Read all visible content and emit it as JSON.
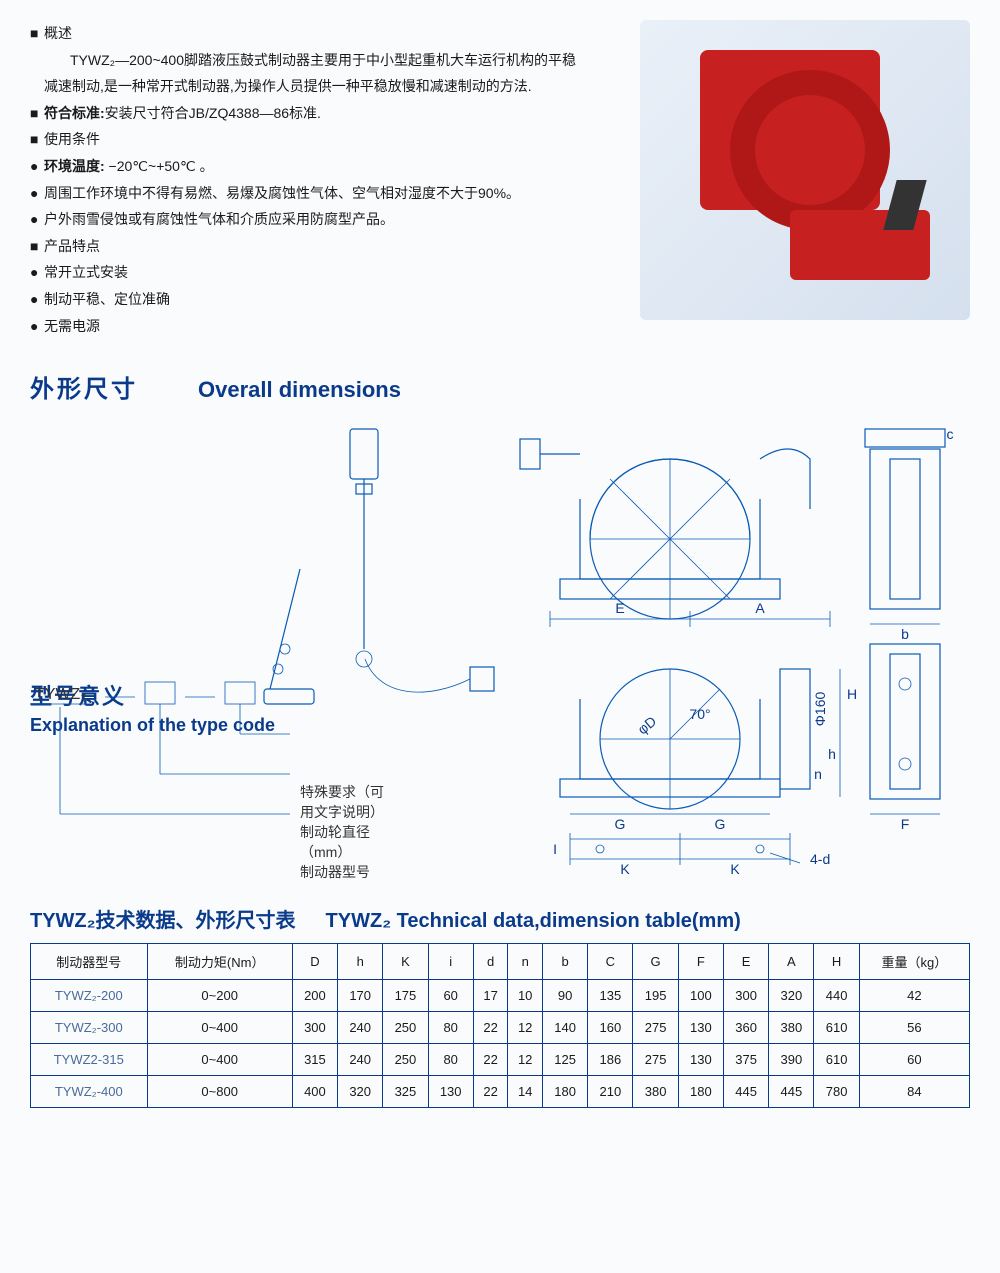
{
  "overview": {
    "header": "概述",
    "line1": "TYWZ₂—200~400脚踏液压鼓式制动器主要用于中小型起重机大车运行机构的平稳",
    "line2": "减速制动,是一种常开式制动器,为操作人员提供一种平稳放慢和减速制动的方法.",
    "std_label": "符合标准:",
    "std_text": "安装尺寸符合JB/ZQ4388—86标准.",
    "cond_label": "使用条件",
    "temp_label": "环境温度:",
    "temp_text": " −20℃~+50℃ 。",
    "cond1": "周围工作环境中不得有易燃、易爆及腐蚀性气体、空气相对湿度不大于90%。",
    "cond2": "户外雨雪侵蚀或有腐蚀性气体和介质应采用防腐型产品。",
    "feat_label": "产品特点",
    "feat1": "常开立式安装",
    "feat2": "制动平稳、定位准确",
    "feat3": "无需电源"
  },
  "dimensions_title": {
    "cn": "外形尺寸",
    "en": "Overall dimensions"
  },
  "typecode": {
    "title_cn": "型号意义",
    "title_en": "Explanation of the type code",
    "prefix": "TYWZ₂",
    "lbl1": "特殊要求（可用文字说明）",
    "lbl2": "制动轮直径（mm）",
    "lbl3": "制动器型号"
  },
  "diagram_labels": {
    "E": "E",
    "A": "A",
    "c": "c",
    "b": "b",
    "G": "G",
    "F": "F",
    "H": "H",
    "h": "h",
    "n": "n",
    "phiD": "φD",
    "phi160": "Φ160",
    "angle": "70°",
    "K": "K",
    "4d": "4-d",
    "I": "I"
  },
  "table_title": {
    "cn": "TYWZ₂技术数据、外形尺寸表",
    "en": "TYWZ₂ Technical data,dimension table(mm)"
  },
  "table": {
    "columns": [
      "制动器型号",
      "制动力矩(Nm）",
      "D",
      "h",
      "K",
      "i",
      "d",
      "n",
      "b",
      "C",
      "G",
      "F",
      "E",
      "A",
      "H",
      "重量（kg）"
    ],
    "rows": [
      [
        "TYWZ₂-200",
        "0~200",
        "200",
        "170",
        "175",
        "60",
        "17",
        "10",
        "90",
        "135",
        "195",
        "100",
        "300",
        "320",
        "440",
        "42"
      ],
      [
        "TYWZ₂-300",
        "0~400",
        "300",
        "240",
        "250",
        "80",
        "22",
        "12",
        "140",
        "160",
        "275",
        "130",
        "360",
        "380",
        "610",
        "56"
      ],
      [
        "TYWZ2-315",
        "0~400",
        "315",
        "240",
        "250",
        "80",
        "22",
        "12",
        "125",
        "186",
        "275",
        "130",
        "375",
        "390",
        "610",
        "60"
      ],
      [
        "TYWZ₂-400",
        "0~800",
        "400",
        "320",
        "325",
        "130",
        "22",
        "14",
        "180",
        "210",
        "380",
        "180",
        "445",
        "445",
        "780",
        "84"
      ]
    ]
  },
  "colors": {
    "brand": "#0a3b8a",
    "line": "#0a5bb5",
    "text": "#1a1a1a",
    "red": "#c62020"
  }
}
